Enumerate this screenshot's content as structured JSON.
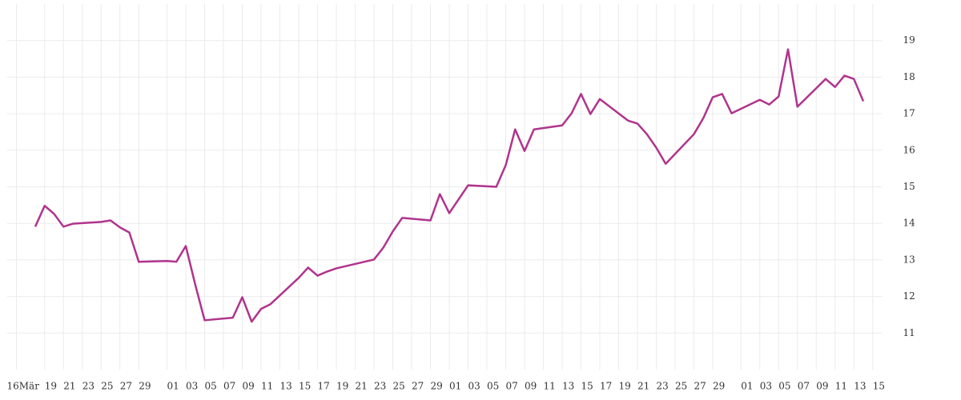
{
  "chart_data": {
    "type": "line",
    "x": [
      "03-18",
      "03-19",
      "03-20",
      "03-21",
      "03-22",
      "03-25",
      "03-26",
      "03-27",
      "03-28",
      "03-29",
      "04-01",
      "04-02",
      "04-03",
      "04-04",
      "04-05",
      "04-08",
      "04-09",
      "04-10",
      "04-11",
      "04-12",
      "04-15",
      "04-16",
      "04-17",
      "04-18",
      "04-19",
      "04-23",
      "04-24",
      "04-25",
      "04-26",
      "04-29",
      "04-30",
      "05-01",
      "05-03",
      "05-06",
      "05-07",
      "05-08",
      "05-09",
      "05-10",
      "05-13",
      "05-14",
      "05-15",
      "05-16",
      "05-17",
      "05-20",
      "05-21",
      "05-22",
      "05-23",
      "05-24",
      "05-27",
      "05-28",
      "05-29",
      "05-30",
      "05-31",
      "06-03",
      "06-04",
      "06-05",
      "06-06",
      "06-07",
      "06-10",
      "06-11",
      "06-12",
      "06-13",
      "06-14"
    ],
    "series": [
      {
        "color": "#b0348c",
        "values": [
          13.91,
          14.48,
          14.26,
          13.91,
          13.99,
          14.04,
          14.08,
          13.89,
          13.75,
          12.95,
          12.97,
          12.95,
          13.38,
          12.33,
          11.35,
          11.42,
          11.98,
          11.31,
          11.66,
          11.79,
          12.51,
          12.79,
          12.57,
          12.68,
          12.77,
          13.01,
          13.34,
          13.78,
          14.15,
          14.08,
          14.8,
          14.28,
          15.04,
          15.0,
          15.59,
          16.57,
          15.98,
          16.57,
          16.68,
          17.01,
          17.54,
          16.99,
          17.4,
          16.81,
          16.73,
          16.44,
          16.07,
          15.63,
          16.44,
          16.88,
          17.45,
          17.54,
          17.01,
          17.38,
          17.25,
          17.47,
          18.76,
          17.19,
          17.95,
          17.73,
          18.04,
          17.95,
          17.34
        ]
      }
    ],
    "xlim": [
      "03-15",
      "06-16"
    ],
    "xticks": [
      {
        "value": "03-16",
        "label": "16Mär"
      },
      {
        "value": "03-19",
        "label": "19"
      },
      {
        "value": "03-21",
        "label": "21"
      },
      {
        "value": "03-23",
        "label": "23"
      },
      {
        "value": "03-25",
        "label": "25"
      },
      {
        "value": "03-27",
        "label": "27"
      },
      {
        "value": "03-29",
        "label": "29"
      },
      {
        "value": "04-01",
        "label": "01"
      },
      {
        "value": "04-03",
        "label": "03"
      },
      {
        "value": "04-05",
        "label": "05"
      },
      {
        "value": "04-07",
        "label": "07"
      },
      {
        "value": "04-09",
        "label": "09"
      },
      {
        "value": "04-11",
        "label": "11"
      },
      {
        "value": "04-13",
        "label": "13"
      },
      {
        "value": "04-15",
        "label": "15"
      },
      {
        "value": "04-17",
        "label": "17"
      },
      {
        "value": "04-19",
        "label": "19"
      },
      {
        "value": "04-21",
        "label": "21"
      },
      {
        "value": "04-23",
        "label": "23"
      },
      {
        "value": "04-25",
        "label": "25"
      },
      {
        "value": "04-27",
        "label": "27"
      },
      {
        "value": "04-29",
        "label": "29"
      },
      {
        "value": "05-01",
        "label": "01"
      },
      {
        "value": "05-03",
        "label": "03"
      },
      {
        "value": "05-05",
        "label": "05"
      },
      {
        "value": "05-07",
        "label": "07"
      },
      {
        "value": "05-09",
        "label": "09"
      },
      {
        "value": "05-11",
        "label": "11"
      },
      {
        "value": "05-13",
        "label": "13"
      },
      {
        "value": "05-15",
        "label": "15"
      },
      {
        "value": "05-17",
        "label": "17"
      },
      {
        "value": "05-19",
        "label": "19"
      },
      {
        "value": "05-21",
        "label": "21"
      },
      {
        "value": "05-23",
        "label": "23"
      },
      {
        "value": "05-25",
        "label": "25"
      },
      {
        "value": "05-27",
        "label": "27"
      },
      {
        "value": "05-29",
        "label": "29"
      },
      {
        "value": "06-01",
        "label": "01"
      },
      {
        "value": "06-03",
        "label": "03"
      },
      {
        "value": "06-05",
        "label": "05"
      },
      {
        "value": "06-07",
        "label": "07"
      },
      {
        "value": "06-09",
        "label": "09"
      },
      {
        "value": "06-11",
        "label": "11"
      },
      {
        "value": "06-13",
        "label": "13"
      },
      {
        "value": "06-15",
        "label": "15"
      }
    ],
    "ylim": [
      10,
      20
    ],
    "yticks": [
      11,
      12,
      13,
      14,
      15,
      16,
      17,
      18,
      19
    ],
    "grid": true
  }
}
